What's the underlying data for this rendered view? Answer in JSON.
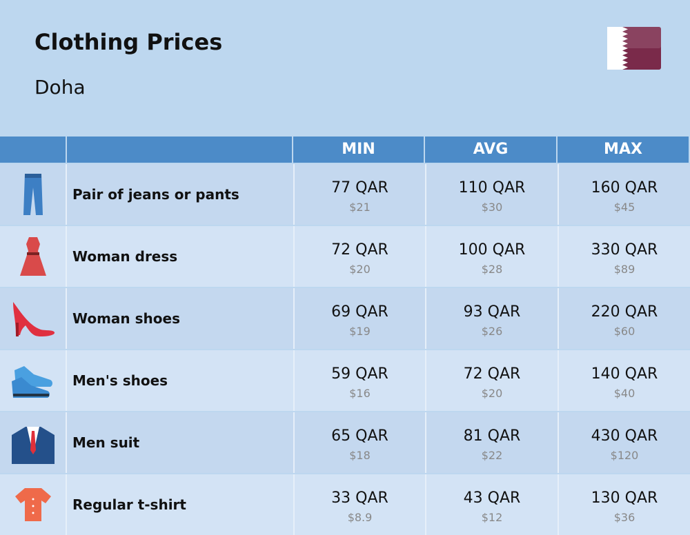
{
  "header": {
    "title": "Clothing Prices",
    "subtitle": "Doha"
  },
  "table": {
    "columns": [
      "MIN",
      "AVG",
      "MAX"
    ],
    "rows": [
      {
        "label": "Pair of jeans or pants",
        "cells": [
          {
            "main": "77 QAR",
            "sub": "$21"
          },
          {
            "main": "110 QAR",
            "sub": "$30"
          },
          {
            "main": "160 QAR",
            "sub": "$45"
          }
        ]
      },
      {
        "label": "Woman dress",
        "cells": [
          {
            "main": "72 QAR",
            "sub": "$20"
          },
          {
            "main": "100 QAR",
            "sub": "$28"
          },
          {
            "main": "330 QAR",
            "sub": "$89"
          }
        ]
      },
      {
        "label": "Woman shoes",
        "cells": [
          {
            "main": "69 QAR",
            "sub": "$19"
          },
          {
            "main": "93 QAR",
            "sub": "$26"
          },
          {
            "main": "220 QAR",
            "sub": "$60"
          }
        ]
      },
      {
        "label": "Men's shoes",
        "cells": [
          {
            "main": "59 QAR",
            "sub": "$16"
          },
          {
            "main": "72 QAR",
            "sub": "$20"
          },
          {
            "main": "140 QAR",
            "sub": "$40"
          }
        ]
      },
      {
        "label": "Men suit",
        "cells": [
          {
            "main": "65 QAR",
            "sub": "$18"
          },
          {
            "main": "81 QAR",
            "sub": "$22"
          },
          {
            "main": "430 QAR",
            "sub": "$120"
          }
        ]
      },
      {
        "label": "Regular t-shirt",
        "cells": [
          {
            "main": "33 QAR",
            "sub": "$8.9"
          },
          {
            "main": "43 QAR",
            "sub": "$12"
          },
          {
            "main": "130 QAR",
            "sub": "$36"
          }
        ]
      }
    ]
  }
}
